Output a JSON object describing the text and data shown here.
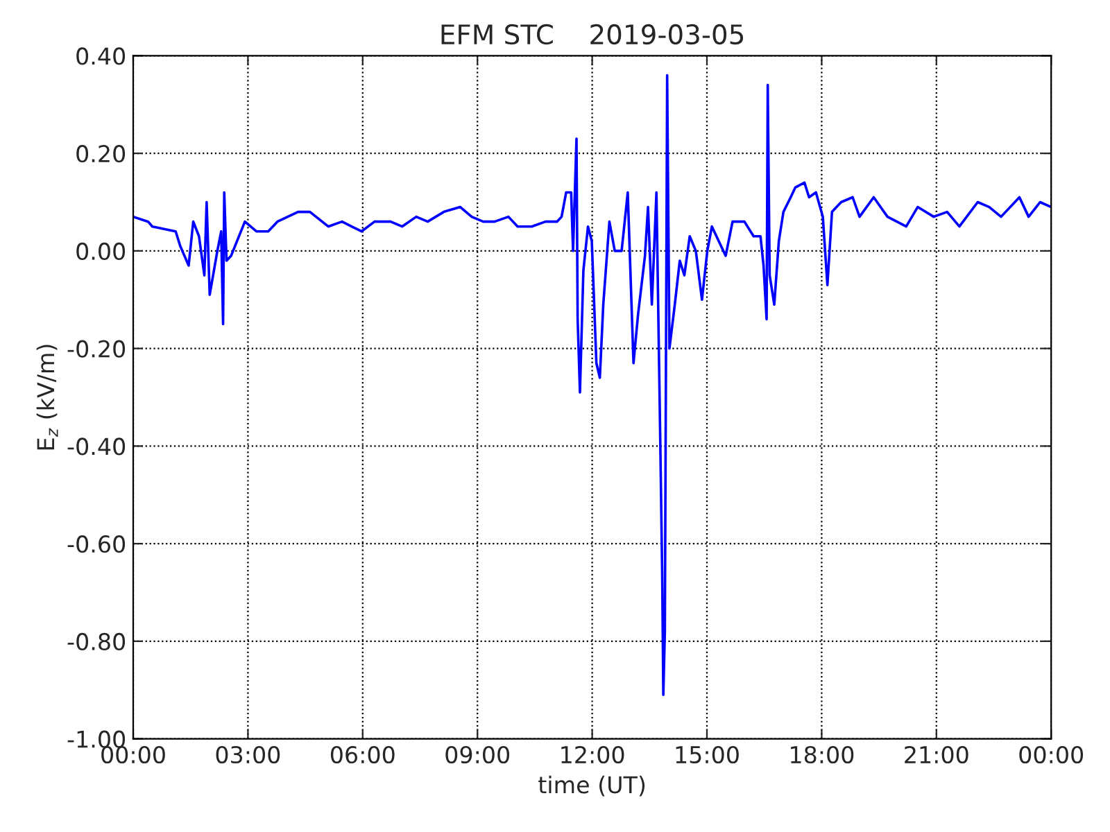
{
  "chart_data": {
    "type": "line",
    "title": "EFM STC    2019-03-05",
    "xlabel": "time (UT)",
    "ylabel": "E$_{z}$ (kV/m)",
    "series": [
      {
        "color": "#0000ff",
        "x": [
          0.0,
          0.39,
          0.5,
          1.11,
          1.23,
          1.45,
          1.57,
          1.72,
          1.86,
          1.92,
          2.0,
          2.2,
          2.3,
          2.35,
          2.38,
          2.44,
          2.56,
          2.92,
          3.22,
          3.53,
          3.77,
          4.31,
          4.62,
          5.1,
          5.46,
          5.97,
          6.31,
          6.73,
          7.03,
          7.4,
          7.7,
          8.12,
          8.55,
          8.85,
          9.15,
          9.45,
          9.81,
          10.05,
          10.42,
          10.78,
          11.08,
          11.2,
          11.32,
          11.45,
          11.5,
          11.59,
          11.62,
          11.68,
          11.77,
          11.89,
          11.99,
          12.11,
          12.2,
          12.29,
          12.45,
          12.59,
          12.77,
          12.93,
          13.08,
          13.2,
          13.38,
          13.46,
          13.56,
          13.68,
          13.78,
          13.83,
          13.86,
          13.9,
          13.96,
          14.02,
          14.16,
          14.29,
          14.41,
          14.55,
          14.71,
          14.87,
          15.01,
          15.13,
          15.49,
          15.67,
          15.98,
          16.22,
          16.4,
          16.48,
          16.56,
          16.59,
          16.64,
          16.76,
          16.88,
          17.0,
          17.19,
          17.31,
          17.55,
          17.67,
          17.85,
          18.03,
          18.15,
          18.27,
          18.51,
          18.81,
          18.99,
          19.36,
          19.72,
          20.21,
          20.51,
          20.93,
          21.28,
          21.6,
          22.08,
          22.38,
          22.69,
          23.17,
          23.41,
          23.71,
          24.0
        ],
        "values": [
          0.07,
          0.06,
          0.05,
          0.04,
          0.01,
          -0.03,
          0.06,
          0.03,
          -0.05,
          0.1,
          -0.09,
          0.0,
          0.04,
          -0.15,
          0.12,
          -0.02,
          -0.01,
          0.06,
          0.04,
          0.04,
          0.06,
          0.08,
          0.08,
          0.05,
          0.06,
          0.04,
          0.06,
          0.06,
          0.05,
          0.07,
          0.06,
          0.08,
          0.09,
          0.07,
          0.06,
          0.06,
          0.07,
          0.05,
          0.05,
          0.06,
          0.06,
          0.07,
          0.12,
          0.12,
          0.0,
          0.23,
          -0.14,
          -0.29,
          -0.04,
          0.05,
          0.02,
          -0.23,
          -0.26,
          -0.11,
          0.06,
          0.0,
          0.0,
          0.12,
          -0.23,
          -0.13,
          -0.01,
          0.09,
          -0.11,
          0.12,
          -0.39,
          -0.66,
          -0.91,
          -0.78,
          0.36,
          -0.2,
          -0.11,
          -0.02,
          -0.05,
          0.03,
          0.0,
          -0.1,
          0.0,
          0.05,
          -0.01,
          0.06,
          0.06,
          0.03,
          0.03,
          -0.03,
          -0.14,
          0.34,
          -0.05,
          -0.11,
          0.02,
          0.08,
          0.11,
          0.13,
          0.14,
          0.11,
          0.12,
          0.07,
          -0.07,
          0.08,
          0.1,
          0.11,
          0.07,
          0.11,
          0.07,
          0.05,
          0.09,
          0.07,
          0.08,
          0.05,
          0.1,
          0.09,
          0.07,
          0.11,
          0.07,
          0.1,
          0.09
        ]
      }
    ],
    "xlim": [
      0,
      24
    ],
    "xticks": [
      {
        "value": 0,
        "label": "00:00"
      },
      {
        "value": 3,
        "label": "03:00"
      },
      {
        "value": 6,
        "label": "06:00"
      },
      {
        "value": 9,
        "label": "09:00"
      },
      {
        "value": 12,
        "label": "12:00"
      },
      {
        "value": 15,
        "label": "15:00"
      },
      {
        "value": 18,
        "label": "18:00"
      },
      {
        "value": 21,
        "label": "21:00"
      },
      {
        "value": 24,
        "label": "00:00"
      }
    ],
    "ylim": [
      -1.0,
      0.4
    ],
    "yticks": [
      {
        "value": -1.0,
        "label": "-1.00"
      },
      {
        "value": -0.8,
        "label": "-0.80"
      },
      {
        "value": -0.6,
        "label": "-0.60"
      },
      {
        "value": -0.4,
        "label": "-0.40"
      },
      {
        "value": -0.2,
        "label": "-0.20"
      },
      {
        "value": 0.0,
        "label": "0.00"
      },
      {
        "value": 0.2,
        "label": "0.20"
      },
      {
        "value": 0.4,
        "label": "0.40"
      }
    ],
    "grid": true,
    "line_style": "solid"
  }
}
